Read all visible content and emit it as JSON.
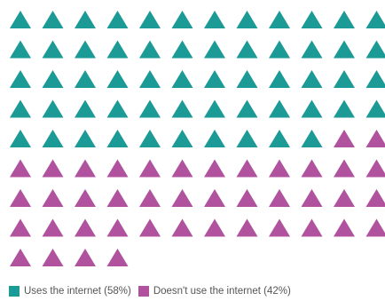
{
  "chart_data": {
    "type": "pictogram",
    "icon": "triangle-icon",
    "total_icons": 100,
    "categories": [
      "Uses the internet",
      "Doesn't use the internet"
    ],
    "values": [
      58,
      42
    ],
    "series": [
      {
        "name": "Uses the internet (58%)",
        "value": 58,
        "color": "#1b9a96"
      },
      {
        "name": "Doesn't use the internet (42%)",
        "value": 42,
        "color": "#b0529e"
      }
    ],
    "legend_position": "bottom-left"
  }
}
